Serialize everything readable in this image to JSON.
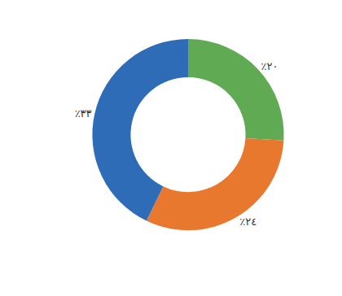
{
  "chart_data": {
    "type": "donut",
    "values": [
      20,
      24,
      33
    ],
    "value_labels": [
      "٪٢٠",
      "٪٢٤",
      "٪٣٣"
    ],
    "colors": [
      "#5faa52",
      "#e9782f",
      "#2f6cb8"
    ],
    "data_labels": true
  }
}
